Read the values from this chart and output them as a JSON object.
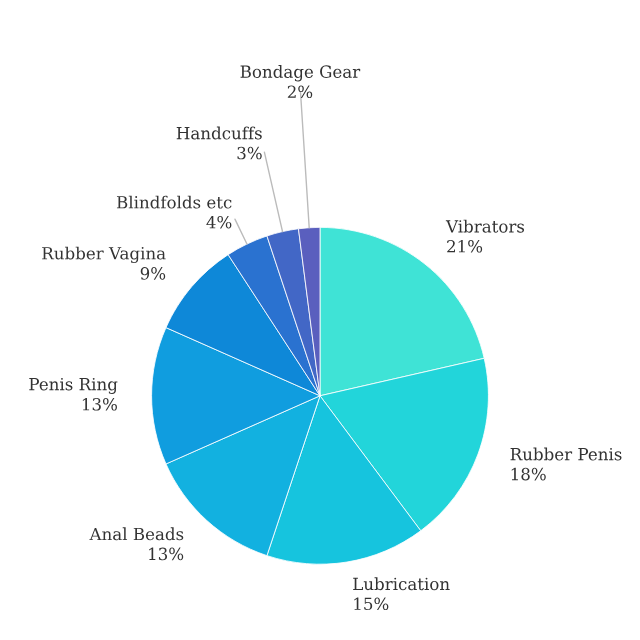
{
  "chart_data": {
    "type": "pie",
    "categories": [
      "Vibrators",
      "Rubber Penis",
      "Lubrication",
      "Anal Beads",
      "Penis Ring",
      "Rubber Vagina",
      "Blindfolds etc",
      "Handcuffs",
      "Bondage Gear"
    ],
    "values": [
      21,
      18,
      15,
      13,
      13,
      9,
      4,
      3,
      2
    ],
    "value_labels": [
      "21%",
      "18%",
      "15%",
      "13%",
      "13%",
      "9%",
      "4%",
      "3%",
      "2%"
    ],
    "colors": [
      "#3fe3d6",
      "#22d5da",
      "#16c4de",
      "#12b1e0",
      "#109ddf",
      "#0e88d8",
      "#2a72d0",
      "#4267c6",
      "#5a5fbe"
    ],
    "legend": false
  }
}
